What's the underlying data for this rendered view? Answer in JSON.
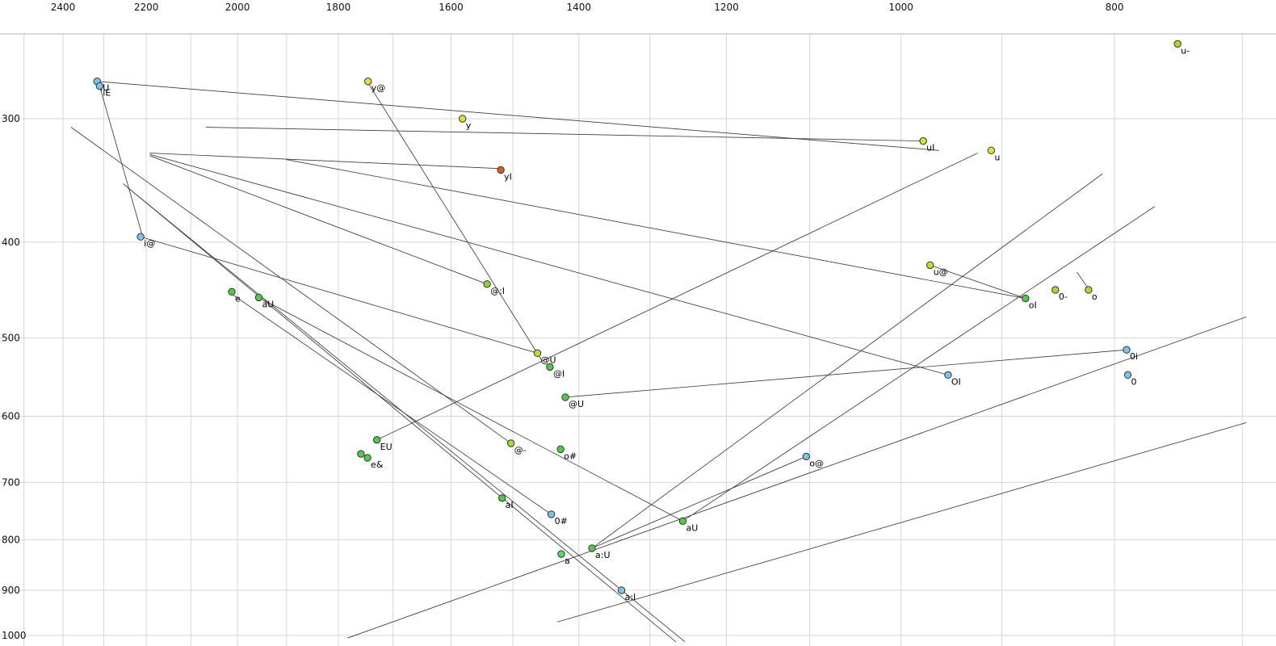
{
  "chart_data": {
    "type": "scatter",
    "title": "",
    "description": "Vowel formant plot: F2 (Hz) on x-axis decreasing rightward, F1 (Hz) on y-axis increasing downward, both log-scaled, with labelled vowel points and diphthong trajectory lines",
    "x_axis": {
      "tick_labels": [
        "2400",
        "2200",
        "2000",
        "1800",
        "1600",
        "1400",
        "1200",
        "1000",
        "800"
      ],
      "tick_values": [
        2400,
        2200,
        2000,
        1800,
        1600,
        1400,
        1200,
        1000,
        800
      ],
      "gridline_values": [
        2500,
        2400,
        2300,
        2200,
        2100,
        2000,
        1900,
        1800,
        1700,
        1600,
        1500,
        1400,
        1300,
        1200,
        1100,
        1000,
        900,
        800,
        700
      ],
      "scale": "log",
      "direction": "decreasing-rightward"
    },
    "y_axis": {
      "tick_labels": [
        "300",
        "400",
        "500",
        "600",
        "700",
        "800",
        "900",
        "1000"
      ],
      "tick_values": [
        300,
        400,
        500,
        600,
        700,
        800,
        900,
        1000
      ],
      "gridline_values": [
        300,
        400,
        500,
        600,
        700,
        800,
        900,
        1000
      ],
      "scale": "log",
      "direction": "increasing-downward"
    },
    "colors": {
      "grid": "#d6d6d6",
      "border": "#b4b4b4",
      "line": "#3c3c3c",
      "point_stroke": "#333333",
      "text": "#000000",
      "background": "#ffffff"
    },
    "points": [
      {
        "label": "iU",
        "f2": 2316,
        "f1": 275,
        "color": "#7cc4ec"
      },
      {
        "label": "iE",
        "f2": 2310,
        "f1": 278,
        "color": "#7cc4ec"
      },
      {
        "label": "y@",
        "f2": 1745,
        "f1": 275,
        "color": "#e6df3a"
      },
      {
        "label": "y",
        "f2": 1581,
        "f1": 300,
        "color": "#e6df3a"
      },
      {
        "label": "yI",
        "f2": 1519,
        "f1": 338,
        "color": "#e05a24"
      },
      {
        "label": "uI",
        "f2": 977,
        "f1": 316,
        "color": "#d6e030"
      },
      {
        "label": "u",
        "f2": 910,
        "f1": 323,
        "color": "#e6df3a"
      },
      {
        "label": "u-",
        "f2": 749,
        "f1": 252,
        "color": "#a4dc2c"
      },
      {
        "label": "i@",
        "f2": 2213,
        "f1": 395,
        "color": "#7cc4ec"
      },
      {
        "label": "e",
        "f2": 2012,
        "f1": 449,
        "color": "#4ecc44"
      },
      {
        "label": "aU",
        "f2": 1956,
        "f1": 455,
        "color": "#4ecc44"
      },
      {
        "label": "@:I",
        "f2": 1541,
        "f1": 441,
        "color": "#8cd434"
      },
      {
        "label": "u@",
        "f2": 970,
        "f1": 422,
        "color": "#c2dc2e"
      },
      {
        "label": "oI",
        "f2": 878,
        "f1": 456,
        "color": "#4ecc44"
      },
      {
        "label": "0-",
        "f2": 851,
        "f1": 447,
        "color": "#a4dc2c"
      },
      {
        "label": "o",
        "f2": 822,
        "f1": 447,
        "color": "#a4dc2c"
      },
      {
        "label": "0i",
        "f2": 790,
        "f1": 514,
        "color": "#7cc4ec"
      },
      {
        "label": "0",
        "f2": 789,
        "f1": 545,
        "color": "#7cc4ec"
      },
      {
        "label": "OI",
        "f2": 952,
        "f1": 545,
        "color": "#7cc4ec"
      },
      {
        "label": "@U",
        "f2": 1462,
        "f1": 518,
        "color": "#c2dc2e"
      },
      {
        "label": "@I",
        "f2": 1443,
        "f1": 535,
        "color": "#4ecc44"
      },
      {
        "label": "@U",
        "f2": 1420,
        "f1": 574,
        "color": "#4ecc44"
      },
      {
        "label": "EU",
        "f2": 1729,
        "f1": 634,
        "color": "#4ecc44"
      },
      {
        "label": "e&",
        "f2": 1746,
        "f1": 661,
        "color": "#4ecc44"
      },
      {
        "label": "",
        "f2": 1758,
        "f1": 655,
        "color": "#4ecc44"
      },
      {
        "label": "@-",
        "f2": 1503,
        "f1": 639,
        "color": "#a4dc2c"
      },
      {
        "label": "o#",
        "f2": 1427,
        "f1": 648,
        "color": "#4ecc44"
      },
      {
        "label": "o@",
        "f2": 1104,
        "f1": 659,
        "color": "#7cc4ec"
      },
      {
        "label": "aI",
        "f2": 1517,
        "f1": 726,
        "color": "#4ecc44"
      },
      {
        "label": "0#",
        "f2": 1441,
        "f1": 754,
        "color": "#7cc4ec"
      },
      {
        "label": "aU",
        "f2": 1256,
        "f1": 766,
        "color": "#4ecc44"
      },
      {
        "label": "a",
        "f2": 1426,
        "f1": 827,
        "color": "#55dd55"
      },
      {
        "label": "a:U",
        "f2": 1381,
        "f1": 816,
        "color": "#4ecc44"
      },
      {
        "label": "a:I",
        "f2": 1339,
        "f1": 900,
        "color": "#7cc4ec"
      }
    ],
    "segments": [
      {
        "from": [
          2316,
          275
        ],
        "to": [
          961,
          323
        ]
      },
      {
        "from": [
          2310,
          278
        ],
        "to": [
          2209,
          394
        ]
      },
      {
        "from": [
          2213,
          395
        ],
        "to": [
          1462,
          518
        ]
      },
      {
        "from": [
          1745,
          276
        ],
        "to": [
          1456,
          526
        ]
      },
      {
        "from": [
          2192,
          325
        ],
        "to": [
          1519,
          337
        ]
      },
      {
        "from": [
          2067,
          306
        ],
        "to": [
          977,
          316
        ]
      },
      {
        "from": [
          2192,
          326
        ],
        "to": [
          952,
          545
        ]
      },
      {
        "from": [
          970,
          422
        ],
        "to": [
          878,
          456
        ]
      },
      {
        "from": [
          832,
          429
        ],
        "to": [
          822,
          446
        ]
      },
      {
        "from": [
          2254,
          349
        ],
        "to": [
          1265,
          1015
        ]
      },
      {
        "from": [
          2244,
          352
        ],
        "to": [
          1253,
          1015
        ]
      },
      {
        "from": [
          2380,
          306
        ],
        "to": [
          1503,
          639
        ]
      },
      {
        "from": [
          2016,
          450
        ],
        "to": [
          1441,
          754
        ]
      },
      {
        "from": [
          1956,
          455
        ],
        "to": [
          1256,
          766
        ]
      },
      {
        "from": [
          1729,
          634
        ],
        "to": [
          923,
          325
        ]
      },
      {
        "from": [
          1420,
          574
        ],
        "to": [
          790,
          514
        ]
      },
      {
        "from": [
          1381,
          816
        ],
        "to": [
          810,
          341
        ]
      },
      {
        "from": [
          1256,
          766
        ],
        "to": [
          767,
          368
        ]
      },
      {
        "from": [
          1104,
          659
        ],
        "to": [
          1381,
          816
        ]
      },
      {
        "from": [
          1783,
          1006
        ],
        "to": [
          697,
          476
        ]
      },
      {
        "from": [
          1432,
          969
        ],
        "to": [
          697,
          609
        ]
      },
      {
        "from": [
          1541,
          441
        ],
        "to": [
          2192,
          327
        ]
      },
      {
        "from": [
          878,
          456
        ],
        "to": [
          1900,
          330
        ]
      }
    ]
  }
}
